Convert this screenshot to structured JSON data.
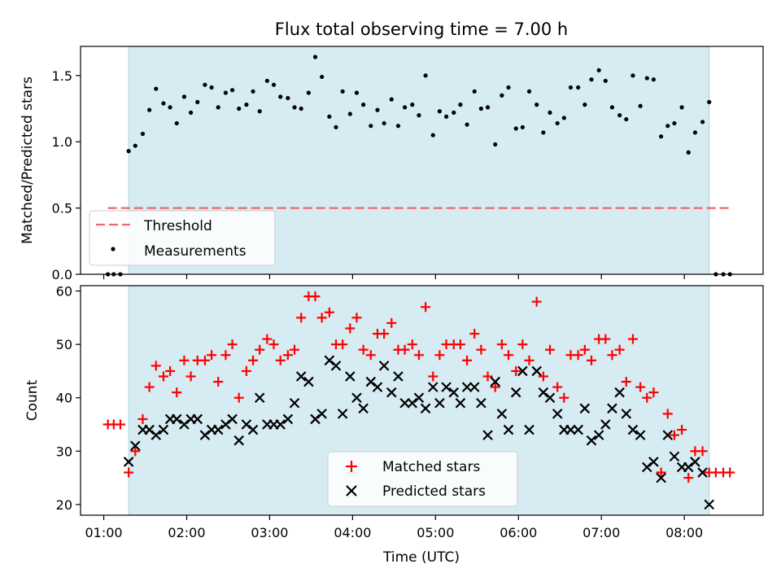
{
  "chart_data": [
    {
      "type": "scatter",
      "title": "Flux total observing time = 7.00 h",
      "xlabel": "",
      "ylabel": "Matched/Predicted stars",
      "xlim": [
        0.72,
        8.95
      ],
      "ylim": [
        0.0,
        1.72
      ],
      "yticks": [
        0.0,
        0.5,
        1.0,
        1.5
      ],
      "ytick_labels": [
        "0.0",
        "0.5",
        "1.0",
        "1.5"
      ],
      "shaded_span": [
        1.3,
        8.3
      ],
      "threshold": {
        "name": "Threshold",
        "y": 0.5,
        "x": [
          1.05,
          8.55
        ],
        "color": "#f06666"
      },
      "legend": {
        "position": "lower-left",
        "entries": [
          "Threshold",
          "Measurements"
        ]
      },
      "series": [
        {
          "name": "Measurements",
          "color": "#000000",
          "x": [
            1.05,
            1.12,
            1.2,
            1.3,
            1.38,
            1.47,
            1.55,
            1.63,
            1.72,
            1.8,
            1.88,
            1.97,
            2.05,
            2.13,
            2.22,
            2.3,
            2.38,
            2.47,
            2.55,
            2.63,
            2.72,
            2.8,
            2.88,
            2.97,
            3.05,
            3.13,
            3.22,
            3.3,
            3.38,
            3.47,
            3.55,
            3.63,
            3.72,
            3.8,
            3.88,
            3.97,
            4.05,
            4.13,
            4.22,
            4.3,
            4.38,
            4.47,
            4.55,
            4.63,
            4.72,
            4.8,
            4.88,
            4.97,
            5.05,
            5.13,
            5.22,
            5.3,
            5.38,
            5.47,
            5.55,
            5.63,
            5.72,
            5.8,
            5.88,
            5.97,
            6.05,
            6.13,
            6.22,
            6.3,
            6.38,
            6.47,
            6.55,
            6.63,
            6.72,
            6.8,
            6.88,
            6.97,
            7.05,
            7.13,
            7.22,
            7.3,
            7.38,
            7.47,
            7.55,
            7.63,
            7.72,
            7.8,
            7.88,
            7.97,
            8.05,
            8.13,
            8.22,
            8.3,
            8.38,
            8.47,
            8.55
          ],
          "y": [
            0,
            0,
            0,
            0.93,
            0.97,
            1.06,
            1.24,
            1.4,
            1.29,
            1.26,
            1.14,
            1.34,
            1.22,
            1.3,
            1.43,
            1.41,
            1.26,
            1.37,
            1.39,
            1.25,
            1.28,
            1.38,
            1.23,
            1.46,
            1.43,
            1.34,
            1.33,
            1.26,
            1.25,
            1.37,
            1.64,
            1.49,
            1.19,
            1.11,
            1.38,
            1.21,
            1.37,
            1.28,
            1.12,
            1.24,
            1.14,
            1.32,
            1.12,
            1.26,
            1.28,
            1.2,
            1.5,
            1.05,
            1.23,
            1.19,
            1.22,
            1.28,
            1.13,
            1.38,
            1.25,
            1.26,
            0.98,
            1.35,
            1.41,
            1.1,
            1.11,
            1.38,
            1.28,
            1.07,
            1.22,
            1.14,
            1.18,
            1.41,
            1.41,
            1.28,
            1.47,
            1.54,
            1.46,
            1.26,
            1.2,
            1.17,
            1.5,
            1.27,
            1.48,
            1.47,
            1.04,
            1.12,
            1.14,
            1.26,
            0.92,
            1.07,
            1.15,
            1.3,
            0,
            0,
            0
          ]
        }
      ]
    },
    {
      "type": "scatter",
      "title": "",
      "xlabel": "Time (UTC)",
      "ylabel": "Count",
      "xlim": [
        0.72,
        8.95
      ],
      "ylim": [
        18,
        61
      ],
      "yticks": [
        20,
        30,
        40,
        50,
        60
      ],
      "ytick_labels": [
        "20",
        "30",
        "40",
        "50",
        "60"
      ],
      "xticks": [
        1,
        2,
        3,
        4,
        5,
        6,
        7,
        8
      ],
      "xtick_labels": [
        "01:00",
        "02:00",
        "03:00",
        "04:00",
        "05:00",
        "06:00",
        "07:00",
        "08:00"
      ],
      "shaded_span": [
        1.3,
        8.3
      ],
      "legend": {
        "position": "lower-center",
        "entries": [
          "Matched stars",
          "Predicted stars"
        ]
      },
      "series": [
        {
          "name": "Matched stars",
          "marker": "plus",
          "color": "#ff0000",
          "x": [
            1.05,
            1.12,
            1.2,
            1.3,
            1.38,
            1.47,
            1.55,
            1.63,
            1.72,
            1.8,
            1.88,
            1.97,
            2.05,
            2.13,
            2.22,
            2.3,
            2.38,
            2.47,
            2.55,
            2.63,
            2.72,
            2.8,
            2.88,
            2.97,
            3.05,
            3.13,
            3.22,
            3.3,
            3.38,
            3.47,
            3.55,
            3.63,
            3.72,
            3.8,
            3.88,
            3.97,
            4.05,
            4.13,
            4.22,
            4.3,
            4.38,
            4.47,
            4.55,
            4.63,
            4.72,
            4.8,
            4.88,
            4.97,
            5.05,
            5.13,
            5.22,
            5.3,
            5.38,
            5.47,
            5.55,
            5.63,
            5.72,
            5.8,
            5.88,
            5.97,
            6.05,
            6.13,
            6.22,
            6.3,
            6.38,
            6.47,
            6.55,
            6.63,
            6.72,
            6.8,
            6.88,
            6.97,
            7.05,
            7.13,
            7.22,
            7.3,
            7.38,
            7.47,
            7.55,
            7.63,
            7.72,
            7.8,
            7.88,
            7.97,
            8.05,
            8.13,
            8.22,
            8.3,
            8.38,
            8.47,
            8.55
          ],
          "y": [
            35,
            35,
            35,
            26,
            30,
            36,
            42,
            46,
            44,
            45,
            41,
            47,
            44,
            47,
            47,
            48,
            43,
            48,
            50,
            40,
            45,
            47,
            49,
            51,
            50,
            47,
            48,
            49,
            55,
            59,
            59,
            55,
            56,
            50,
            50,
            53,
            55,
            49,
            48,
            52,
            52,
            54,
            49,
            49,
            50,
            48,
            57,
            44,
            48,
            50,
            50,
            50,
            47,
            52,
            49,
            44,
            42,
            50,
            48,
            45,
            50,
            47,
            58,
            44,
            49,
            42,
            40,
            48,
            48,
            49,
            47,
            51,
            51,
            48,
            49,
            43,
            51,
            42,
            40,
            41,
            26,
            37,
            33,
            34,
            25,
            30,
            30,
            26,
            26,
            26,
            26
          ]
        },
        {
          "name": "Predicted stars",
          "marker": "x",
          "color": "#000000",
          "x": [
            1.3,
            1.38,
            1.47,
            1.55,
            1.63,
            1.72,
            1.8,
            1.88,
            1.97,
            2.05,
            2.13,
            2.22,
            2.3,
            2.38,
            2.47,
            2.55,
            2.63,
            2.72,
            2.8,
            2.88,
            2.97,
            3.05,
            3.13,
            3.22,
            3.3,
            3.38,
            3.47,
            3.55,
            3.63,
            3.72,
            3.8,
            3.88,
            3.97,
            4.05,
            4.13,
            4.22,
            4.3,
            4.38,
            4.47,
            4.55,
            4.63,
            4.72,
            4.8,
            4.88,
            4.97,
            5.05,
            5.13,
            5.22,
            5.3,
            5.38,
            5.47,
            5.55,
            5.63,
            5.72,
            5.8,
            5.88,
            5.97,
            6.05,
            6.13,
            6.22,
            6.3,
            6.38,
            6.47,
            6.55,
            6.63,
            6.72,
            6.8,
            6.88,
            6.97,
            7.05,
            7.13,
            7.22,
            7.3,
            7.38,
            7.47,
            7.55,
            7.63,
            7.72,
            7.8,
            7.88,
            7.97,
            8.05,
            8.13,
            8.22,
            8.3
          ],
          "y": [
            28,
            31,
            34,
            34,
            33,
            34,
            36,
            36,
            35,
            36,
            36,
            33,
            34,
            34,
            35,
            36,
            32,
            35,
            34,
            40,
            35,
            35,
            35,
            36,
            39,
            44,
            43,
            36,
            37,
            47,
            46,
            37,
            44,
            40,
            38,
            43,
            42,
            46,
            41,
            44,
            39,
            39,
            40,
            38,
            42,
            39,
            42,
            41,
            39,
            42,
            42,
            39,
            33,
            43,
            37,
            34,
            41,
            45,
            34,
            45,
            41,
            40,
            37,
            34,
            34,
            34,
            38,
            32,
            33,
            35,
            38,
            41,
            37,
            34,
            33,
            27,
            28,
            25,
            33,
            29,
            27,
            27,
            28,
            26,
            20
          ]
        }
      ]
    }
  ]
}
